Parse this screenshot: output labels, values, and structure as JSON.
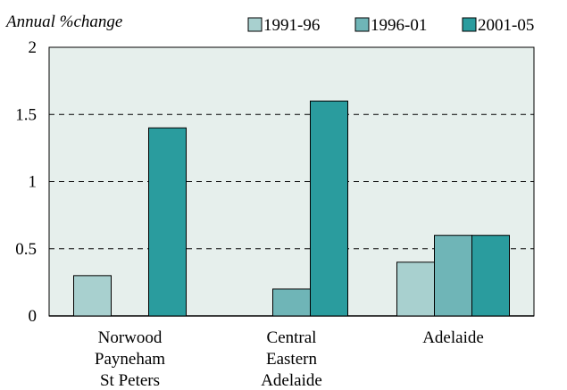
{
  "chart_data": {
    "type": "bar",
    "ylabel": "Annual %change",
    "ylim": [
      0,
      2
    ],
    "yticks": [
      "0",
      "0.5",
      "1",
      "1.5",
      "2"
    ],
    "categories": [
      [
        "Norwood",
        "Payneham",
        "St Peters"
      ],
      [
        "Central",
        "Eastern",
        "Adelaide"
      ],
      [
        "Adelaide"
      ]
    ],
    "series": [
      {
        "name": "1991-96",
        "values": [
          0.3,
          0.0,
          0.4
        ]
      },
      {
        "name": "1996-01",
        "values": [
          0.0,
          0.2,
          0.6
        ]
      },
      {
        "name": "2001-05",
        "values": [
          1.4,
          1.6,
          0.6
        ]
      }
    ],
    "grid": true,
    "legend_position": "top",
    "colors": {
      "plot_bg": "#e6efec",
      "series": [
        "#a8d0cf",
        "#6fb5b7",
        "#2a9c9e"
      ]
    }
  }
}
